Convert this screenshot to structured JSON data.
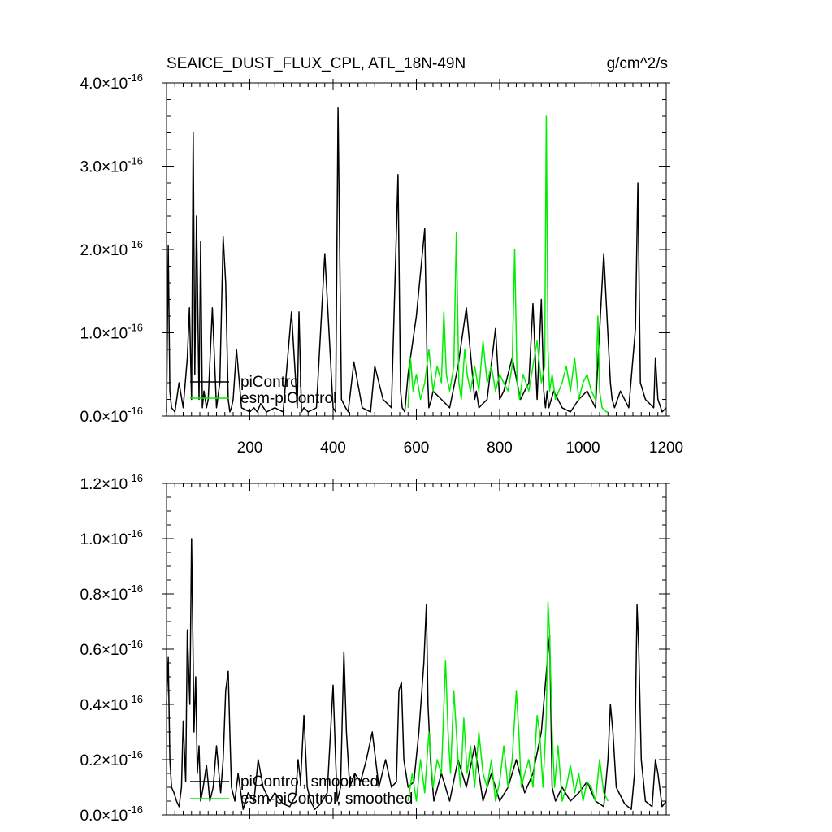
{
  "figure": {
    "title_left": "SEAICE_DUST_FLUX_CPL, ATL_18N-49N",
    "title_right": "g/cm^2/s"
  },
  "colors": {
    "piControl": "#000000",
    "esm_piControl": "#00ee00",
    "axis": "#000000"
  },
  "chart_data": [
    {
      "type": "line",
      "title": "",
      "xlim": [
        0,
        1200
      ],
      "ylim": [
        0.0,
        4.0
      ],
      "y_exponent": -16,
      "y_tick_mantissas": [
        "0.0",
        "1.0",
        "2.0",
        "3.0",
        "4.0"
      ],
      "x_tick_labels": [
        "200",
        "400",
        "600",
        "800",
        "1000",
        "1200"
      ],
      "grid": false,
      "legend_position": "bottom-left",
      "series": [
        {
          "name": "piControl",
          "color": "#000000",
          "x": [
            0,
            4,
            8,
            12,
            20,
            30,
            40,
            50,
            55,
            60,
            64,
            68,
            72,
            78,
            82,
            86,
            90,
            96,
            100,
            110,
            120,
            128,
            136,
            142,
            148,
            152,
            156,
            160,
            168,
            180,
            200,
            210,
            218,
            226,
            240,
            260,
            280,
            300,
            314,
            318,
            324,
            330,
            340,
            360,
            380,
            400,
            406,
            412,
            420,
            430,
            436,
            442,
            450,
            470,
            490,
            500,
            520,
            540,
            556,
            562,
            566,
            572,
            580,
            600,
            620,
            626,
            630,
            636,
            640,
            660,
            680,
            700,
            720,
            740,
            744,
            750,
            770,
            790,
            800,
            810,
            830,
            850,
            870,
            880,
            890,
            900,
            906,
            910,
            914,
            918,
            924,
            930,
            950,
            970,
            990,
            1010,
            1030,
            1050,
            1066,
            1070,
            1076,
            1090,
            1110,
            1126,
            1132,
            1138,
            1150,
            1170,
            1174,
            1180,
            1190,
            1200
          ],
          "y": [
            0.05,
            2.05,
            0.3,
            0.1,
            0.05,
            0.4,
            0.1,
            0.7,
            1.3,
            0.2,
            3.4,
            0.5,
            2.4,
            0.2,
            2.1,
            0.1,
            0.3,
            0.1,
            0.2,
            1.3,
            0.1,
            0.4,
            2.15,
            1.6,
            0.2,
            0.05,
            0.1,
            0.2,
            0.8,
            0.1,
            0.05,
            0.1,
            0.05,
            0.15,
            0.05,
            0.1,
            0.05,
            1.25,
            0.1,
            1.25,
            0.05,
            0.1,
            0.05,
            0.1,
            1.95,
            0.1,
            0.05,
            3.7,
            0.2,
            0.1,
            0.05,
            0.3,
            0.65,
            0.1,
            0.05,
            0.6,
            0.2,
            0.1,
            2.9,
            0.3,
            0.1,
            0.05,
            0.5,
            1.2,
            2.25,
            0.6,
            0.1,
            0.2,
            0.3,
            0.2,
            0.1,
            0.6,
            1.3,
            0.2,
            0.3,
            0.1,
            0.2,
            1.05,
            0.2,
            0.3,
            0.7,
            0.2,
            0.4,
            1.35,
            0.2,
            1.4,
            0.3,
            0.1,
            0.3,
            0.1,
            0.2,
            0.3,
            0.1,
            0.05,
            0.2,
            0.3,
            0.1,
            1.95,
            0.4,
            0.2,
            0.1,
            0.3,
            0.1,
            1.05,
            2.8,
            0.4,
            0.2,
            0.1,
            0.7,
            0.2,
            0.05,
            0.1
          ]
        },
        {
          "name": "esm-piControl",
          "color": "#00ee00",
          "x": [
            580,
            586,
            592,
            600,
            610,
            620,
            630,
            640,
            650,
            660,
            666,
            672,
            680,
            690,
            696,
            702,
            708,
            716,
            722,
            730,
            740,
            750,
            760,
            770,
            780,
            790,
            800,
            810,
            820,
            830,
            836,
            842,
            848,
            856,
            870,
            880,
            890,
            900,
            908,
            912,
            916,
            920,
            926,
            934,
            950,
            960,
            970,
            980,
            990,
            1000,
            1010,
            1020,
            1030,
            1036,
            1040,
            1046,
            1056,
            1060
          ],
          "y": [
            0.1,
            0.7,
            0.3,
            0.5,
            0.2,
            0.4,
            0.8,
            0.3,
            0.6,
            0.4,
            1.25,
            0.5,
            0.3,
            0.6,
            2.2,
            0.4,
            0.2,
            0.8,
            0.5,
            0.3,
            0.6,
            0.3,
            0.9,
            0.4,
            0.6,
            0.3,
            0.5,
            0.4,
            0.3,
            0.6,
            2.0,
            0.4,
            0.2,
            0.5,
            0.3,
            0.6,
            0.9,
            0.4,
            0.6,
            3.6,
            0.8,
            0.3,
            0.5,
            0.2,
            0.4,
            0.6,
            0.3,
            0.7,
            0.2,
            0.4,
            0.5,
            0.3,
            0.2,
            1.2,
            0.3,
            0.1,
            0.05,
            0.05
          ]
        }
      ],
      "legend": [
        "piControl",
        "esm-piControl"
      ]
    },
    {
      "type": "line",
      "title": "",
      "xlim": [
        0,
        1200
      ],
      "ylim": [
        0.0,
        1.2
      ],
      "y_exponent": -16,
      "y_tick_mantissas": [
        "0.0",
        "0.2",
        "0.4",
        "0.6",
        "0.8",
        "1.0",
        "1.2"
      ],
      "x_tick_labels": [],
      "grid": false,
      "legend_position": "bottom-left",
      "series": [
        {
          "name": "piControl, smoothed",
          "color": "#000000",
          "x": [
            0,
            4,
            8,
            12,
            18,
            24,
            30,
            36,
            40,
            46,
            50,
            56,
            60,
            64,
            66,
            70,
            74,
            78,
            82,
            88,
            96,
            104,
            112,
            120,
            130,
            136,
            142,
            148,
            152,
            156,
            164,
            172,
            184,
            196,
            210,
            220,
            232,
            248,
            260,
            280,
            296,
            310,
            316,
            322,
            330,
            338,
            346,
            356,
            370,
            386,
            400,
            406,
            410,
            418,
            426,
            432,
            440,
            452,
            466,
            480,
            494,
            510,
            526,
            540,
            552,
            558,
            564,
            570,
            580,
            594,
            606,
            618,
            624,
            628,
            634,
            642,
            660,
            680,
            700,
            720,
            740,
            760,
            780,
            800,
            820,
            840,
            860,
            880,
            900,
            914,
            920,
            926,
            934,
            950,
            970,
            990,
            1010,
            1030,
            1050,
            1060,
            1066,
            1072,
            1080,
            1100,
            1116,
            1124,
            1130,
            1134,
            1140,
            1150,
            1166,
            1174,
            1180,
            1190,
            1200
          ],
          "y": [
            0.4,
            0.57,
            0.2,
            0.1,
            0.08,
            0.05,
            0.03,
            0.1,
            0.34,
            0.12,
            0.67,
            0.4,
            1.0,
            0.55,
            0.3,
            0.5,
            0.15,
            0.25,
            0.05,
            0.1,
            0.18,
            0.05,
            0.1,
            0.25,
            0.08,
            0.2,
            0.45,
            0.52,
            0.3,
            0.1,
            0.05,
            0.15,
            0.02,
            0.08,
            0.05,
            0.2,
            0.1,
            0.05,
            0.08,
            0.04,
            0.03,
            0.07,
            0.2,
            0.12,
            0.36,
            0.1,
            0.05,
            0.02,
            0.04,
            0.08,
            0.47,
            0.2,
            0.05,
            0.1,
            0.59,
            0.3,
            0.1,
            0.15,
            0.12,
            0.2,
            0.3,
            0.1,
            0.2,
            0.1,
            0.12,
            0.45,
            0.48,
            0.2,
            0.1,
            0.12,
            0.3,
            0.55,
            0.76,
            0.4,
            0.2,
            0.05,
            0.15,
            0.05,
            0.2,
            0.1,
            0.25,
            0.05,
            0.15,
            0.05,
            0.1,
            0.2,
            0.08,
            0.15,
            0.3,
            0.55,
            0.65,
            0.1,
            0.05,
            0.1,
            0.05,
            0.08,
            0.12,
            0.05,
            0.03,
            0.2,
            0.4,
            0.3,
            0.1,
            0.04,
            0.02,
            0.15,
            0.76,
            0.6,
            0.2,
            0.05,
            0.03,
            0.2,
            0.15,
            0.03,
            0.05
          ]
        },
        {
          "name": "esm-piControl, smoothed",
          "color": "#00ee00",
          "x": [
            580,
            590,
            600,
            610,
            620,
            630,
            640,
            650,
            660,
            670,
            676,
            682,
            690,
            700,
            706,
            714,
            722,
            730,
            740,
            750,
            760,
            770,
            780,
            790,
            800,
            810,
            820,
            830,
            840,
            846,
            852,
            860,
            870,
            880,
            890,
            896,
            904,
            912,
            916,
            920,
            926,
            932,
            940,
            950,
            960,
            970,
            980,
            990,
            1000,
            1010,
            1020,
            1030,
            1040,
            1050,
            1060
          ],
          "y": [
            0.05,
            0.15,
            0.05,
            0.2,
            0.08,
            0.3,
            0.1,
            0.2,
            0.15,
            0.56,
            0.3,
            0.15,
            0.45,
            0.2,
            0.1,
            0.35,
            0.15,
            0.25,
            0.1,
            0.3,
            0.15,
            0.1,
            0.2,
            0.05,
            0.12,
            0.25,
            0.1,
            0.2,
            0.45,
            0.3,
            0.1,
            0.15,
            0.2,
            0.1,
            0.36,
            0.3,
            0.1,
            0.35,
            0.77,
            0.65,
            0.3,
            0.1,
            0.25,
            0.05,
            0.1,
            0.18,
            0.08,
            0.15,
            0.05,
            0.12,
            0.1,
            0.05,
            0.2,
            0.08,
            0.05
          ]
        }
      ],
      "legend": [
        "piControl, smoothed",
        "esm-piControl, smoothed"
      ]
    }
  ]
}
